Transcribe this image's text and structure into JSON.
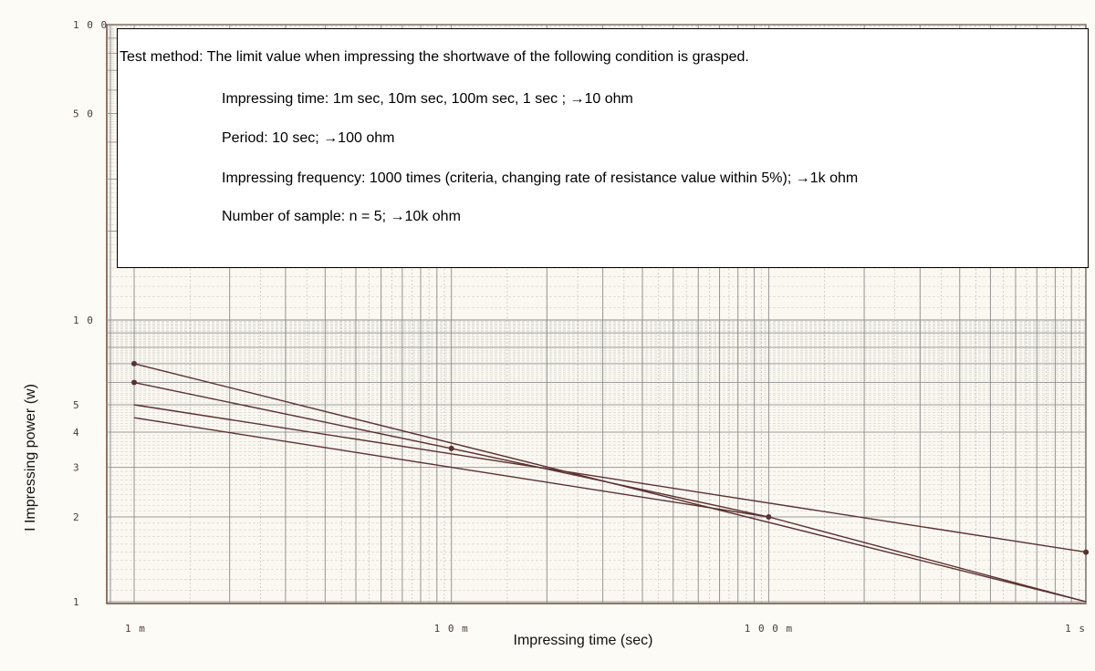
{
  "chart_data": {
    "type": "line",
    "xscale": "log",
    "yscale": "log",
    "xlabel": "Impressing time (sec)",
    "ylabel": "I Impressing power (w)",
    "x_tick_labels": [
      "1m",
      "10m",
      "100m",
      "1s"
    ],
    "x_tick_values": [
      0.001,
      0.01,
      0.1,
      1
    ],
    "y_tick_labels": [
      "1",
      "2",
      "3",
      "4",
      "5",
      "10",
      "50",
      "100"
    ],
    "y_tick_values": [
      1,
      2,
      3,
      4,
      5,
      10,
      50,
      100
    ],
    "xlim": [
      0.001,
      1
    ],
    "ylim": [
      1,
      100
    ],
    "grid": true,
    "series": [
      {
        "x": [
          0.001,
          1
        ],
        "y": [
          7.0,
          1.0
        ],
        "markers": [
          0.001
        ]
      },
      {
        "x": [
          0.001,
          0.01,
          0.1,
          1
        ],
        "y": [
          6.0,
          3.5,
          2.0,
          1.0
        ],
        "markers": [
          0.001,
          0.01,
          0.1
        ]
      },
      {
        "x": [
          0.001,
          1
        ],
        "y": [
          5.0,
          1.5
        ],
        "markers": [
          1
        ]
      },
      {
        "x": [
          0.001,
          0.1
        ],
        "y": [
          4.5,
          2.0
        ],
        "markers": []
      }
    ],
    "colors": {
      "line": "#5a3030",
      "grid": "#8a8a8a",
      "paper": "#fdfbf6",
      "frame": "#6a4a3a"
    }
  },
  "note": {
    "title": "Test method: The limit value when impressing the shortwave of the following condition is grasped.",
    "lines": [
      "Impressing time: 1m sec, 10m sec, 100m sec, 1 sec ; →10 ohm",
      "Period: 10 sec; →100 ohm",
      "Impressing frequency: 1000 times (criteria, changing rate of resistance value within 5%); →1k ohm",
      "Number of sample: n = 5; →10k ohm"
    ]
  }
}
